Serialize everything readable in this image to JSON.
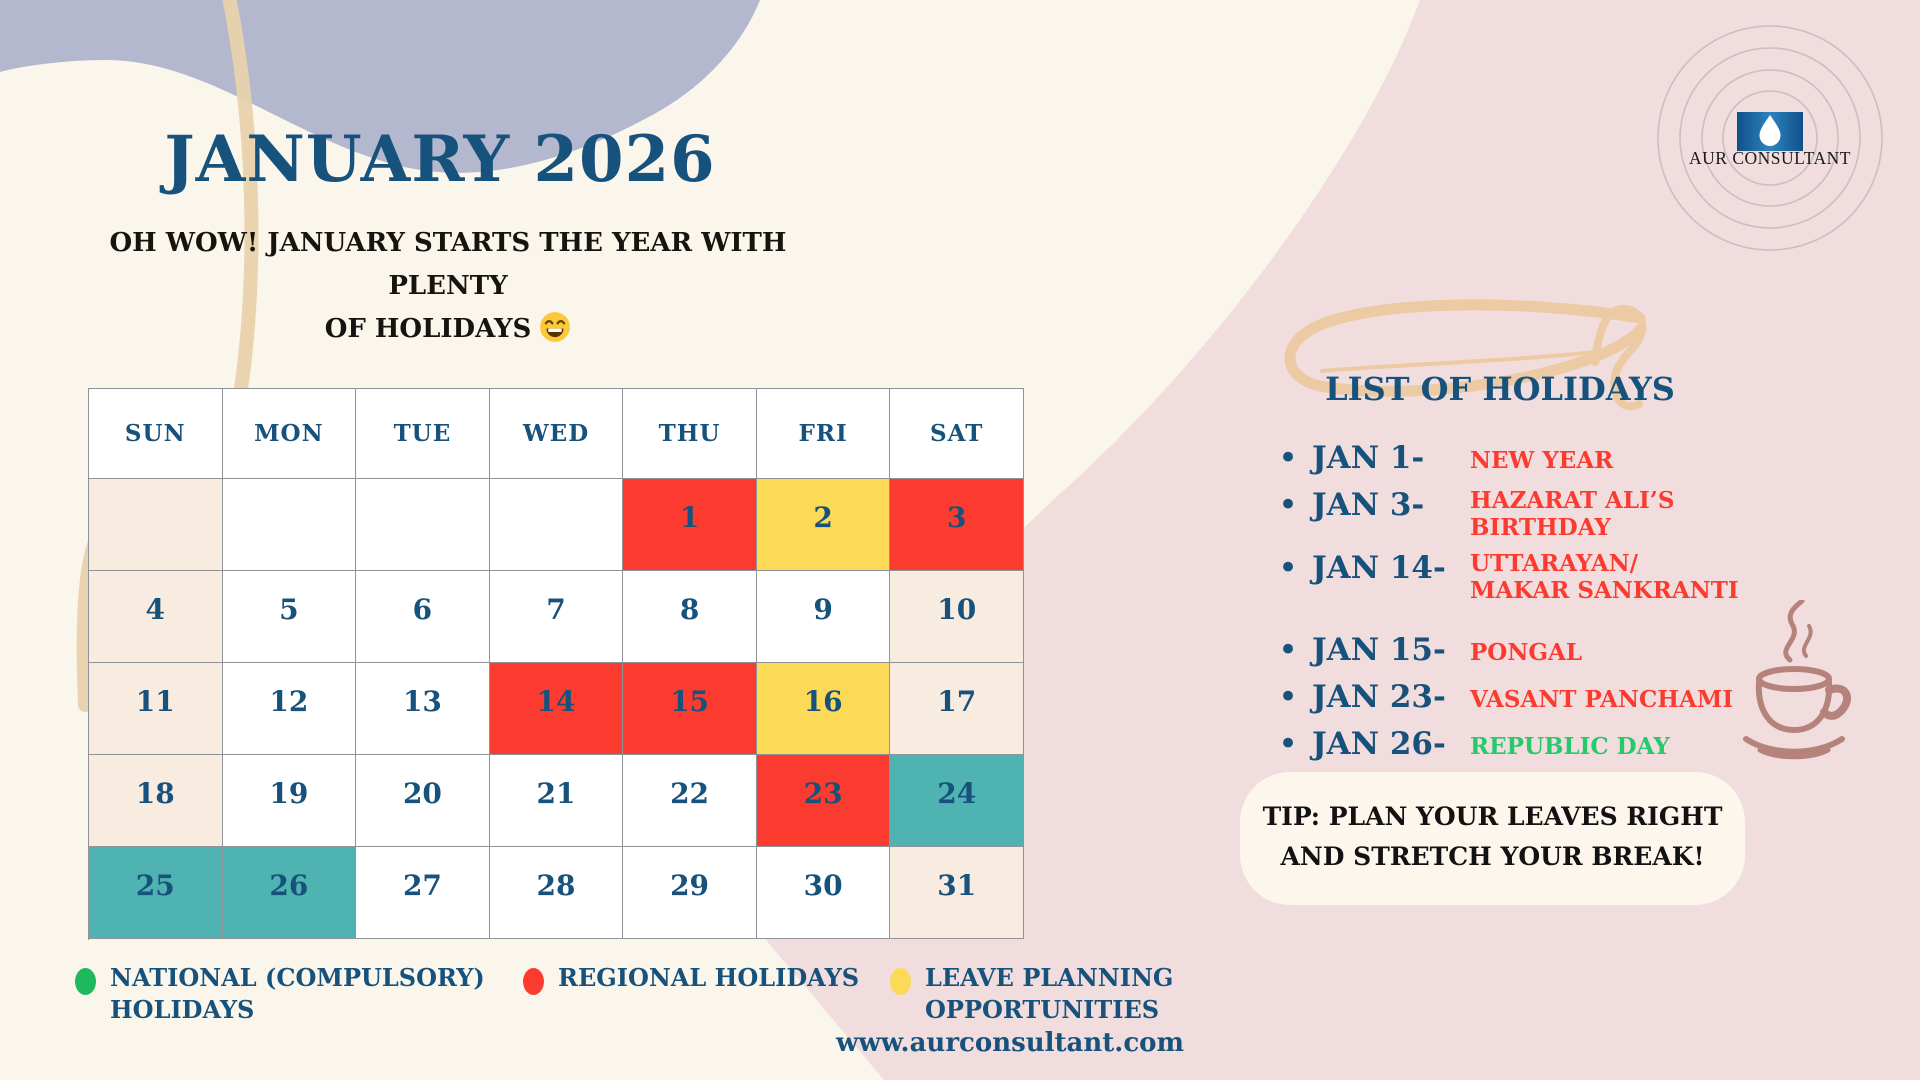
{
  "colors": {
    "background": "#fbf6ec",
    "pink_blob": "#f1dddd",
    "lavender_blob": "#b4b8cf",
    "tan": "#e9d2ac",
    "swirl_tan": "#eccaa4",
    "navy": "#17527c",
    "red": "#fb3b30",
    "yellow": "#fcd957",
    "teal": "#4fb4b1",
    "beige": "#f8ebdf",
    "green_dot": "#1eb85d",
    "green_text": "#28c96c",
    "black": "#171310",
    "grid_line": "#8f9296",
    "tip_bg": "#fdf6ec",
    "logo_blue": "#11568e",
    "cup": "#b5837b"
  },
  "header": {
    "title": "JANUARY 2026",
    "subtitle_line1": "OH WOW! JANUARY STARTS THE YEAR WITH PLENTY",
    "subtitle_line2": "OF HOLIDAYS",
    "subtitle_emoji": "😄"
  },
  "logo": {
    "company": "AUR CONSULTANT"
  },
  "calendar": {
    "day_headers": [
      "SUN",
      "MON",
      "TUE",
      "WED",
      "THU",
      "FRI",
      "SAT"
    ],
    "weeks": [
      [
        {
          "date": "",
          "type": "beige"
        },
        {
          "date": "",
          "type": "white"
        },
        {
          "date": "",
          "type": "white"
        },
        {
          "date": "",
          "type": "white"
        },
        {
          "date": "1",
          "type": "red"
        },
        {
          "date": "2",
          "type": "yellow"
        },
        {
          "date": "3",
          "type": "red"
        }
      ],
      [
        {
          "date": "4",
          "type": "beige"
        },
        {
          "date": "5",
          "type": "white"
        },
        {
          "date": "6",
          "type": "white"
        },
        {
          "date": "7",
          "type": "white"
        },
        {
          "date": "8",
          "type": "white"
        },
        {
          "date": "9",
          "type": "white"
        },
        {
          "date": "10",
          "type": "beige"
        }
      ],
      [
        {
          "date": "11",
          "type": "beige"
        },
        {
          "date": "12",
          "type": "white"
        },
        {
          "date": "13",
          "type": "white"
        },
        {
          "date": "14",
          "type": "red"
        },
        {
          "date": "15",
          "type": "red"
        },
        {
          "date": "16",
          "type": "yellow"
        },
        {
          "date": "17",
          "type": "beige"
        }
      ],
      [
        {
          "date": "18",
          "type": "beige"
        },
        {
          "date": "19",
          "type": "white"
        },
        {
          "date": "20",
          "type": "white"
        },
        {
          "date": "21",
          "type": "white"
        },
        {
          "date": "22",
          "type": "white"
        },
        {
          "date": "23",
          "type": "red"
        },
        {
          "date": "24",
          "type": "teal"
        }
      ],
      [
        {
          "date": "25",
          "type": "teal"
        },
        {
          "date": "26",
          "type": "teal"
        },
        {
          "date": "27",
          "type": "white"
        },
        {
          "date": "28",
          "type": "white"
        },
        {
          "date": "29",
          "type": "white"
        },
        {
          "date": "30",
          "type": "white"
        },
        {
          "date": "31",
          "type": "beige"
        }
      ]
    ]
  },
  "holiday_list": {
    "heading": "LIST OF HOLIDAYS",
    "items": [
      {
        "date": "JAN 1-",
        "name_lines": [
          "NEW YEAR"
        ],
        "color": "red",
        "gap_before": false
      },
      {
        "date": "JAN 3-",
        "name_lines": [
          "HAZARAT ALI’S",
          "BIRTHDAY"
        ],
        "color": "red",
        "gap_before": false
      },
      {
        "date": "JAN 14-",
        "name_lines": [
          "UTTARAYAN/",
          "MAKAR SANKRANTI"
        ],
        "color": "red",
        "gap_before": false
      },
      {
        "date": "JAN 15-",
        "name_lines": [
          "PONGAL"
        ],
        "color": "red",
        "gap_before": true
      },
      {
        "date": "JAN 23-",
        "name_lines": [
          "VASANT PANCHAMI"
        ],
        "color": "red",
        "gap_before": false
      },
      {
        "date": "JAN 26-",
        "name_lines": [
          "REPUBLIC DAY"
        ],
        "color": "green",
        "gap_before": false
      }
    ]
  },
  "tip": {
    "line1": "TIP: PLAN YOUR LEAVES RIGHT",
    "line2": "AND STRETCH YOUR BREAK!"
  },
  "legend": {
    "items": [
      {
        "label_lines": [
          "NATIONAL (COMPULSORY)",
          "HOLIDAYS"
        ],
        "dot_color": "#1eb85d"
      },
      {
        "label_lines": [
          "REGIONAL HOLIDAYS"
        ],
        "dot_color": "#fb3b30"
      },
      {
        "label_lines": [
          "LEAVE PLANNING",
          "OPPORTUNITIES"
        ],
        "dot_color": "#fcd957"
      }
    ]
  },
  "footer": {
    "website": "www.aurconsultant.com"
  }
}
